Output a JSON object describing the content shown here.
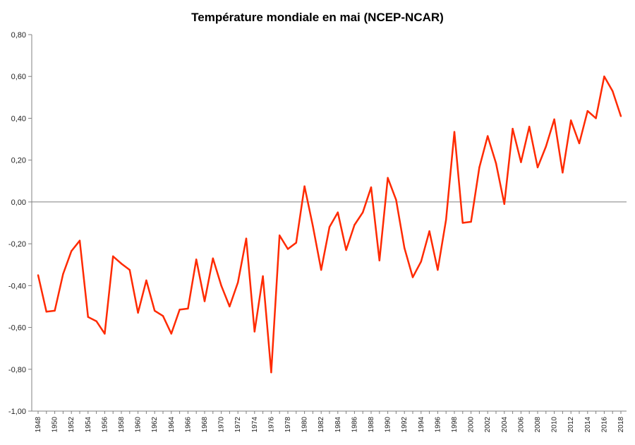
{
  "chart_data": {
    "type": "line",
    "title": "Température mondiale en mai (NCEP-NCAR)",
    "xlabel": "",
    "ylabel": "",
    "ylim": [
      -1.0,
      0.8
    ],
    "ytick_values": [
      0.8,
      0.6,
      0.4,
      0.2,
      0.0,
      -0.2,
      -0.4,
      -0.6,
      -0.8,
      -1.0
    ],
    "ytick_labels": [
      "0,80",
      "0,60",
      "0,40",
      "0,20",
      "0,00",
      "-0,20",
      "-0,40",
      "-0,60",
      "-0,80",
      "-1,00"
    ],
    "xtick_labels": [
      "1948",
      "1950",
      "1952",
      "1954",
      "1956",
      "1958",
      "1960",
      "1962",
      "1964",
      "1966",
      "1968",
      "1970",
      "1972",
      "1974",
      "1976",
      "1978",
      "1980",
      "1982",
      "1984",
      "1986",
      "1988",
      "1990",
      "1992",
      "1994",
      "1996",
      "1998",
      "2000",
      "2002",
      "2004",
      "2006",
      "2008",
      "2010",
      "2012",
      "2014",
      "2016",
      "2018"
    ],
    "series": [
      {
        "name": "Température mondiale en mai",
        "color": "#ff2a00",
        "x": [
          1948,
          1949,
          1950,
          1951,
          1952,
          1953,
          1954,
          1955,
          1956,
          1957,
          1958,
          1959,
          1960,
          1961,
          1962,
          1963,
          1964,
          1965,
          1966,
          1967,
          1968,
          1969,
          1970,
          1971,
          1972,
          1973,
          1974,
          1975,
          1976,
          1977,
          1978,
          1979,
          1980,
          1981,
          1982,
          1983,
          1984,
          1985,
          1986,
          1987,
          1988,
          1989,
          1990,
          1991,
          1992,
          1993,
          1994,
          1995,
          1996,
          1997,
          1998,
          1999,
          2000,
          2001,
          2002,
          2003,
          2004,
          2005,
          2006,
          2007,
          2008,
          2009,
          2010,
          2011,
          2012,
          2013,
          2014,
          2015,
          2016,
          2017,
          2018
        ],
        "values": [
          -0.35,
          -0.525,
          -0.52,
          -0.345,
          -0.235,
          -0.185,
          -0.55,
          -0.57,
          -0.63,
          -0.26,
          -0.295,
          -0.325,
          -0.53,
          -0.375,
          -0.52,
          -0.545,
          -0.63,
          -0.515,
          -0.51,
          -0.275,
          -0.475,
          -0.27,
          -0.4,
          -0.5,
          -0.385,
          -0.175,
          -0.62,
          -0.355,
          -0.815,
          -0.16,
          -0.225,
          -0.195,
          0.075,
          -0.115,
          -0.325,
          -0.12,
          -0.05,
          -0.23,
          -0.11,
          -0.05,
          0.07,
          -0.28,
          0.115,
          0.01,
          -0.22,
          -0.36,
          -0.285,
          -0.14,
          -0.325,
          -0.085,
          0.335,
          -0.1,
          -0.095,
          0.165,
          0.315,
          0.185,
          -0.01,
          0.35,
          0.19,
          0.36,
          0.165,
          0.265,
          0.395,
          0.14,
          0.39,
          0.28,
          0.435,
          0.4,
          0.6,
          0.53,
          0.41
        ]
      }
    ]
  }
}
